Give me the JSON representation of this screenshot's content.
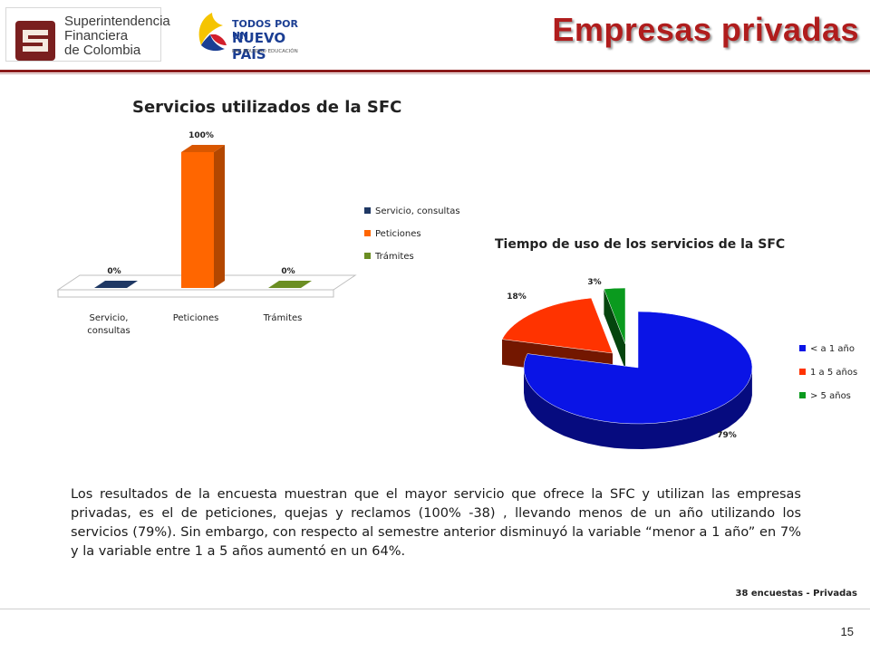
{
  "header": {
    "org_name_lines": [
      "Superintendencia",
      "Financiera",
      "de Colombia"
    ],
    "campaign_logo_lines": [
      "TODOS POR UN",
      "NUEVO PAÍS",
      "PAZ  EQUIDAD  EDUCACIÓN"
    ],
    "page_title": "Empresas privadas"
  },
  "chart_data": [
    {
      "type": "bar",
      "title": "Servicios utilizados de la SFC",
      "categories": [
        "Servicio, consultas",
        "Peticiones",
        "Trámites"
      ],
      "category_lines": [
        [
          "Servicio,",
          "consultas"
        ],
        [
          "Peticiones"
        ],
        [
          "Trámites"
        ]
      ],
      "values": [
        0,
        100,
        0
      ],
      "value_labels": [
        "0%",
        "100%",
        "0%"
      ],
      "colors": [
        "#1f3864",
        "#ff6600",
        "#6b8e23"
      ],
      "ylim": [
        0,
        100
      ],
      "legend": {
        "placement": "right",
        "entries": [
          "Servicio, consultas",
          "Peticiones",
          "Trámites"
        ]
      },
      "grid": false,
      "style": "3d"
    },
    {
      "type": "pie",
      "title": "Tiempo de uso de los servicios de la SFC",
      "labels": [
        "< a 1 año",
        "1 a 5 años",
        "> 5 años"
      ],
      "values": [
        79,
        18,
        3
      ],
      "value_labels": [
        "79%",
        "18%",
        "3%"
      ],
      "colors": [
        "#0a14e6",
        "#ff3300",
        "#0a9a1e"
      ],
      "legend": {
        "placement": "right",
        "entries": [
          "< a 1 año",
          "1 a 5 años",
          "> 5 años"
        ]
      },
      "style": "3d-exploded"
    }
  ],
  "body": {
    "paragraph": "Los resultados de la encuesta muestran que el mayor servicio que ofrece la SFC y utilizan las empresas privadas, es el de peticiones, quejas y reclamos (100% -38) , llevando menos de un año utilizando los servicios (79%). Sin embargo, con respecto al semestre anterior disminuyó  la variable  “menor a 1 año” en 7% y la variable entre 1 a 5 años aumentó en un 64%."
  },
  "footer": {
    "note": "38 encuestas - Privadas",
    "page_number": "15"
  }
}
